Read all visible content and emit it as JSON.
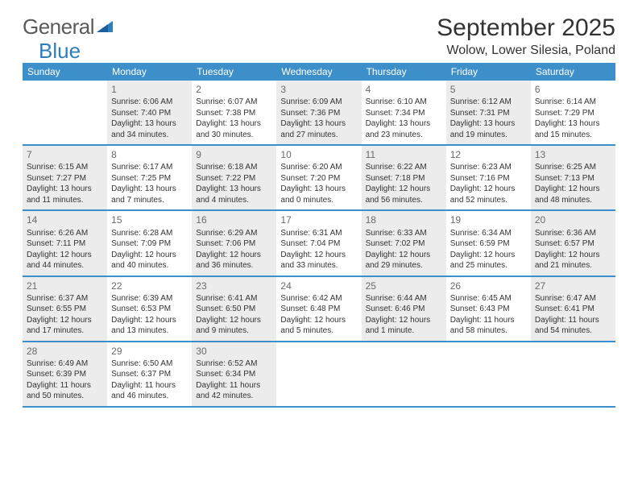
{
  "brand": {
    "word1": "General",
    "word2": "Blue"
  },
  "title": "September 2025",
  "location": "Wolow, Lower Silesia, Poland",
  "colors": {
    "header_bar": "#3d8fc9",
    "brand_gray": "#5a5a5a",
    "brand_blue": "#2f7fbf",
    "shaded_bg": "#ececec",
    "text": "#333333"
  },
  "weekdays": [
    "Sunday",
    "Monday",
    "Tuesday",
    "Wednesday",
    "Thursday",
    "Friday",
    "Saturday"
  ],
  "weeks": [
    [
      {
        "n": "",
        "shaded": false,
        "lines": []
      },
      {
        "n": "1",
        "shaded": true,
        "lines": [
          "Sunrise: 6:06 AM",
          "Sunset: 7:40 PM",
          "Daylight: 13 hours",
          "and 34 minutes."
        ]
      },
      {
        "n": "2",
        "shaded": false,
        "lines": [
          "Sunrise: 6:07 AM",
          "Sunset: 7:38 PM",
          "Daylight: 13 hours",
          "and 30 minutes."
        ]
      },
      {
        "n": "3",
        "shaded": true,
        "lines": [
          "Sunrise: 6:09 AM",
          "Sunset: 7:36 PM",
          "Daylight: 13 hours",
          "and 27 minutes."
        ]
      },
      {
        "n": "4",
        "shaded": false,
        "lines": [
          "Sunrise: 6:10 AM",
          "Sunset: 7:34 PM",
          "Daylight: 13 hours",
          "and 23 minutes."
        ]
      },
      {
        "n": "5",
        "shaded": true,
        "lines": [
          "Sunrise: 6:12 AM",
          "Sunset: 7:31 PM",
          "Daylight: 13 hours",
          "and 19 minutes."
        ]
      },
      {
        "n": "6",
        "shaded": false,
        "lines": [
          "Sunrise: 6:14 AM",
          "Sunset: 7:29 PM",
          "Daylight: 13 hours",
          "and 15 minutes."
        ]
      }
    ],
    [
      {
        "n": "7",
        "shaded": true,
        "lines": [
          "Sunrise: 6:15 AM",
          "Sunset: 7:27 PM",
          "Daylight: 13 hours",
          "and 11 minutes."
        ]
      },
      {
        "n": "8",
        "shaded": false,
        "lines": [
          "Sunrise: 6:17 AM",
          "Sunset: 7:25 PM",
          "Daylight: 13 hours",
          "and 7 minutes."
        ]
      },
      {
        "n": "9",
        "shaded": true,
        "lines": [
          "Sunrise: 6:18 AM",
          "Sunset: 7:22 PM",
          "Daylight: 13 hours",
          "and 4 minutes."
        ]
      },
      {
        "n": "10",
        "shaded": false,
        "lines": [
          "Sunrise: 6:20 AM",
          "Sunset: 7:20 PM",
          "Daylight: 13 hours",
          "and 0 minutes."
        ]
      },
      {
        "n": "11",
        "shaded": true,
        "lines": [
          "Sunrise: 6:22 AM",
          "Sunset: 7:18 PM",
          "Daylight: 12 hours",
          "and 56 minutes."
        ]
      },
      {
        "n": "12",
        "shaded": false,
        "lines": [
          "Sunrise: 6:23 AM",
          "Sunset: 7:16 PM",
          "Daylight: 12 hours",
          "and 52 minutes."
        ]
      },
      {
        "n": "13",
        "shaded": true,
        "lines": [
          "Sunrise: 6:25 AM",
          "Sunset: 7:13 PM",
          "Daylight: 12 hours",
          "and 48 minutes."
        ]
      }
    ],
    [
      {
        "n": "14",
        "shaded": true,
        "lines": [
          "Sunrise: 6:26 AM",
          "Sunset: 7:11 PM",
          "Daylight: 12 hours",
          "and 44 minutes."
        ]
      },
      {
        "n": "15",
        "shaded": false,
        "lines": [
          "Sunrise: 6:28 AM",
          "Sunset: 7:09 PM",
          "Daylight: 12 hours",
          "and 40 minutes."
        ]
      },
      {
        "n": "16",
        "shaded": true,
        "lines": [
          "Sunrise: 6:29 AM",
          "Sunset: 7:06 PM",
          "Daylight: 12 hours",
          "and 36 minutes."
        ]
      },
      {
        "n": "17",
        "shaded": false,
        "lines": [
          "Sunrise: 6:31 AM",
          "Sunset: 7:04 PM",
          "Daylight: 12 hours",
          "and 33 minutes."
        ]
      },
      {
        "n": "18",
        "shaded": true,
        "lines": [
          "Sunrise: 6:33 AM",
          "Sunset: 7:02 PM",
          "Daylight: 12 hours",
          "and 29 minutes."
        ]
      },
      {
        "n": "19",
        "shaded": false,
        "lines": [
          "Sunrise: 6:34 AM",
          "Sunset: 6:59 PM",
          "Daylight: 12 hours",
          "and 25 minutes."
        ]
      },
      {
        "n": "20",
        "shaded": true,
        "lines": [
          "Sunrise: 6:36 AM",
          "Sunset: 6:57 PM",
          "Daylight: 12 hours",
          "and 21 minutes."
        ]
      }
    ],
    [
      {
        "n": "21",
        "shaded": true,
        "lines": [
          "Sunrise: 6:37 AM",
          "Sunset: 6:55 PM",
          "Daylight: 12 hours",
          "and 17 minutes."
        ]
      },
      {
        "n": "22",
        "shaded": false,
        "lines": [
          "Sunrise: 6:39 AM",
          "Sunset: 6:53 PM",
          "Daylight: 12 hours",
          "and 13 minutes."
        ]
      },
      {
        "n": "23",
        "shaded": true,
        "lines": [
          "Sunrise: 6:41 AM",
          "Sunset: 6:50 PM",
          "Daylight: 12 hours",
          "and 9 minutes."
        ]
      },
      {
        "n": "24",
        "shaded": false,
        "lines": [
          "Sunrise: 6:42 AM",
          "Sunset: 6:48 PM",
          "Daylight: 12 hours",
          "and 5 minutes."
        ]
      },
      {
        "n": "25",
        "shaded": true,
        "lines": [
          "Sunrise: 6:44 AM",
          "Sunset: 6:46 PM",
          "Daylight: 12 hours",
          "and 1 minute."
        ]
      },
      {
        "n": "26",
        "shaded": false,
        "lines": [
          "Sunrise: 6:45 AM",
          "Sunset: 6:43 PM",
          "Daylight: 11 hours",
          "and 58 minutes."
        ]
      },
      {
        "n": "27",
        "shaded": true,
        "lines": [
          "Sunrise: 6:47 AM",
          "Sunset: 6:41 PM",
          "Daylight: 11 hours",
          "and 54 minutes."
        ]
      }
    ],
    [
      {
        "n": "28",
        "shaded": true,
        "lines": [
          "Sunrise: 6:49 AM",
          "Sunset: 6:39 PM",
          "Daylight: 11 hours",
          "and 50 minutes."
        ]
      },
      {
        "n": "29",
        "shaded": false,
        "lines": [
          "Sunrise: 6:50 AM",
          "Sunset: 6:37 PM",
          "Daylight: 11 hours",
          "and 46 minutes."
        ]
      },
      {
        "n": "30",
        "shaded": true,
        "lines": [
          "Sunrise: 6:52 AM",
          "Sunset: 6:34 PM",
          "Daylight: 11 hours",
          "and 42 minutes."
        ]
      },
      {
        "n": "",
        "shaded": false,
        "lines": []
      },
      {
        "n": "",
        "shaded": false,
        "lines": []
      },
      {
        "n": "",
        "shaded": false,
        "lines": []
      },
      {
        "n": "",
        "shaded": false,
        "lines": []
      }
    ]
  ]
}
